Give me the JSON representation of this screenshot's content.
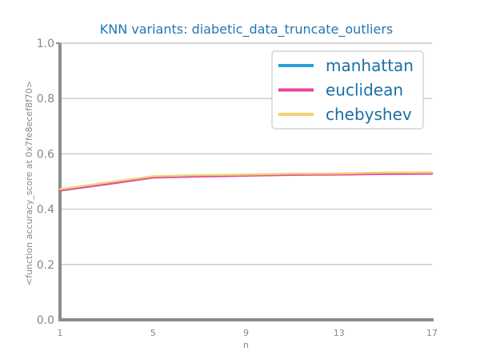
{
  "chart_data": {
    "type": "line",
    "title": "KNN variants: diabetic_data_truncate_outliers",
    "xlabel": "n",
    "ylabel": "<function accuracy_score at 0x7fe8ecef8f70>",
    "x": [
      1,
      3,
      5,
      7,
      9,
      11,
      13,
      15,
      17
    ],
    "xticks": [
      "1",
      "5",
      "9",
      "13",
      "17"
    ],
    "yticks": [
      "0.0",
      "0.2",
      "0.4",
      "0.6",
      "0.8",
      "1.0"
    ],
    "xlim": [
      1,
      17
    ],
    "ylim": [
      0,
      1
    ],
    "grid": "horizontal",
    "legend_position": "top-right",
    "series": [
      {
        "name": "manhattan",
        "color": "#2a9fd8",
        "values": [
          0.468,
          0.492,
          0.516,
          0.52,
          0.523,
          0.526,
          0.527,
          0.529,
          0.53
        ]
      },
      {
        "name": "euclidean",
        "color": "#e8449a",
        "values": [
          0.467,
          0.49,
          0.514,
          0.518,
          0.521,
          0.524,
          0.525,
          0.527,
          0.528
        ]
      },
      {
        "name": "chebyshev",
        "color": "#f0d274",
        "values": [
          0.472,
          0.496,
          0.519,
          0.523,
          0.525,
          0.528,
          0.529,
          0.532,
          0.533
        ]
      }
    ],
    "colors": {
      "title": "#1f77b4",
      "axis_text": "#888888",
      "axis_line": "#8c8c8c",
      "grid": "#cccccc",
      "legend_text": "#1a6fa6",
      "legend_border": "#cccccc"
    }
  }
}
